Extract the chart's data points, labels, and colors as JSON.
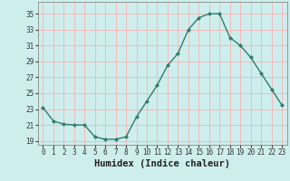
{
  "x": [
    0,
    1,
    2,
    3,
    4,
    5,
    6,
    7,
    8,
    9,
    10,
    11,
    12,
    13,
    14,
    15,
    16,
    17,
    18,
    19,
    20,
    21,
    22,
    23
  ],
  "y": [
    23.2,
    21.5,
    21.1,
    21.0,
    21.0,
    19.5,
    19.2,
    19.2,
    19.5,
    22.0,
    24.0,
    26.0,
    28.5,
    30.0,
    33.0,
    34.5,
    35.0,
    35.0,
    32.0,
    31.0,
    29.5,
    27.5,
    25.5,
    23.5
  ],
  "line_color": "#2e7d6e",
  "marker": "D",
  "marker_size": 2.0,
  "bg_color": "#ceeeed",
  "grid_color_major": "#f5b8b8",
  "grid_color_minor": "#ceeeed",
  "xlabel": "Humidex (Indice chaleur)",
  "xlim": [
    -0.5,
    23.5
  ],
  "ylim": [
    18.5,
    36.5
  ],
  "yticks": [
    19,
    21,
    23,
    25,
    27,
    29,
    31,
    33,
    35
  ],
  "xticks": [
    0,
    1,
    2,
    3,
    4,
    5,
    6,
    7,
    8,
    9,
    10,
    11,
    12,
    13,
    14,
    15,
    16,
    17,
    18,
    19,
    20,
    21,
    22,
    23
  ],
  "tick_fontsize": 5.5,
  "xlabel_fontsize": 7.5
}
